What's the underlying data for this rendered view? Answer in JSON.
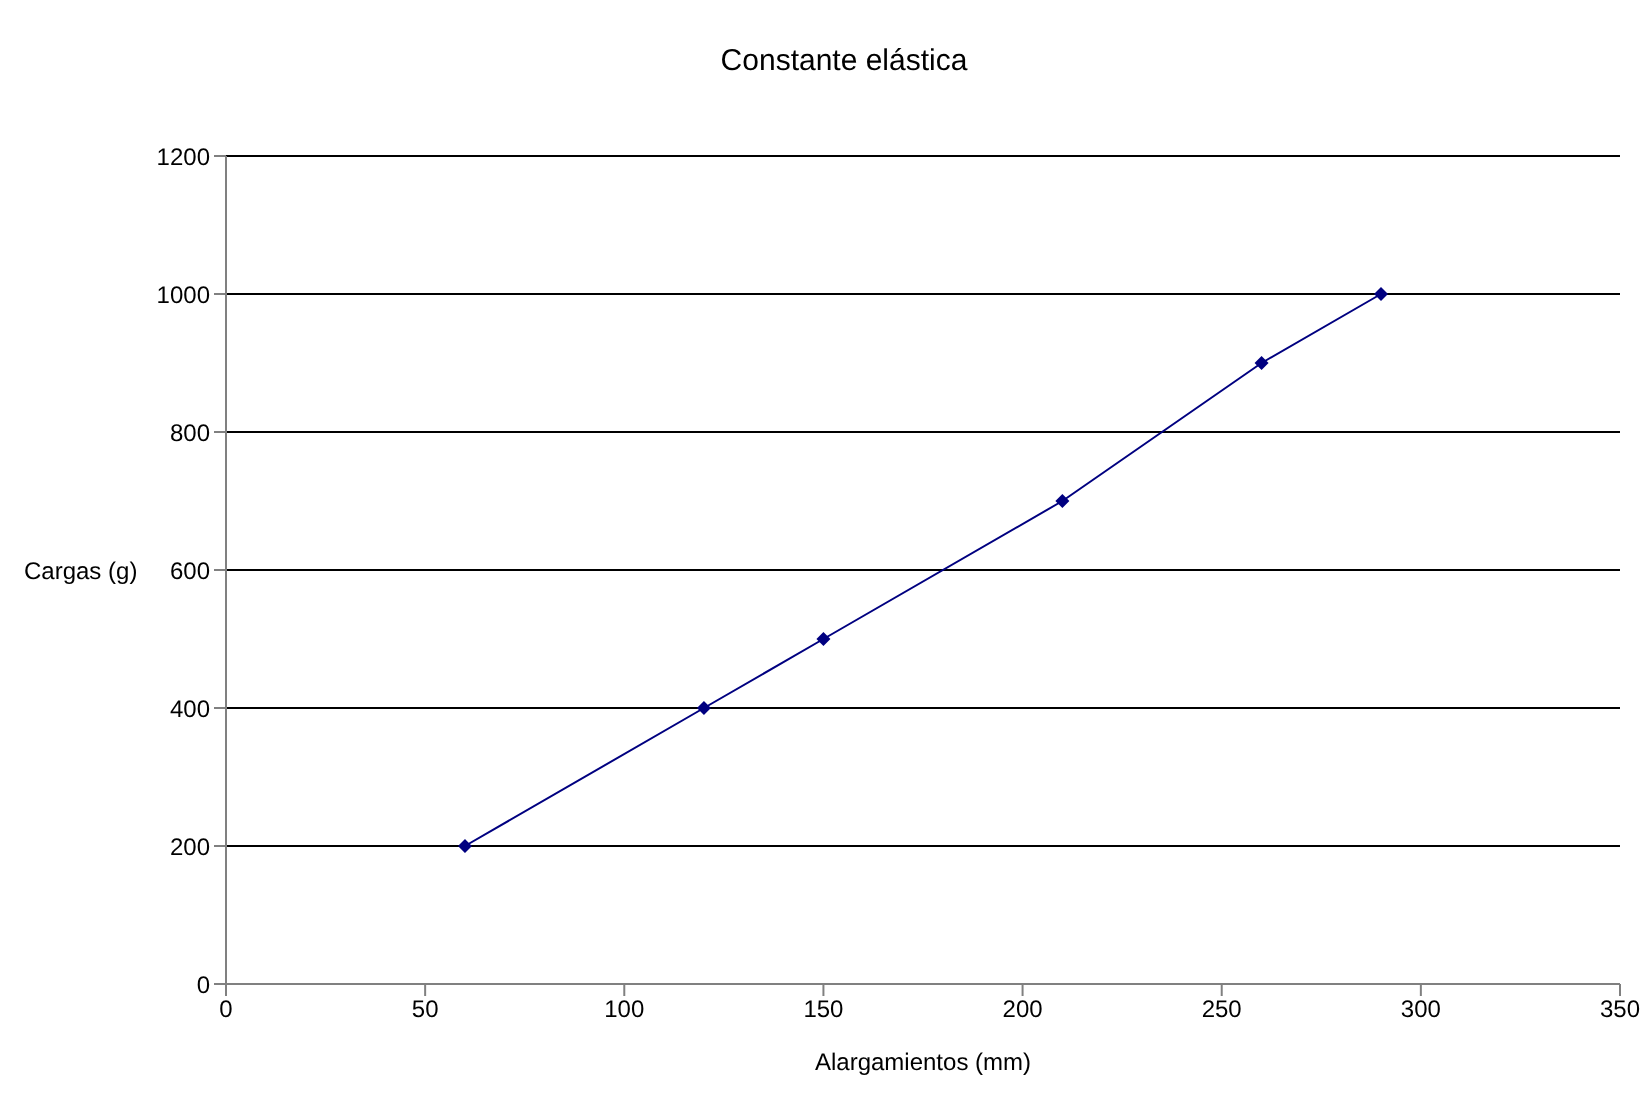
{
  "chart_data": {
    "type": "line",
    "title": "Constante elástica",
    "xlabel": "Alargamientos (mm)",
    "ylabel": "Cargas (g)",
    "x": [
      60,
      120,
      150,
      210,
      260,
      290
    ],
    "series": [
      {
        "color": "#000080",
        "values": [
          200,
          400,
          500,
          700,
          900,
          1000
        ]
      }
    ],
    "xlim": [
      0,
      350
    ],
    "xticks": [
      0,
      50,
      100,
      150,
      200,
      250,
      300,
      350
    ],
    "ylim": [
      0,
      1200
    ],
    "yticks": [
      0,
      200,
      400,
      600,
      800,
      1000,
      1200
    ],
    "grid": "y",
    "marker": "diamond",
    "line_style": "solid",
    "legend": false
  }
}
